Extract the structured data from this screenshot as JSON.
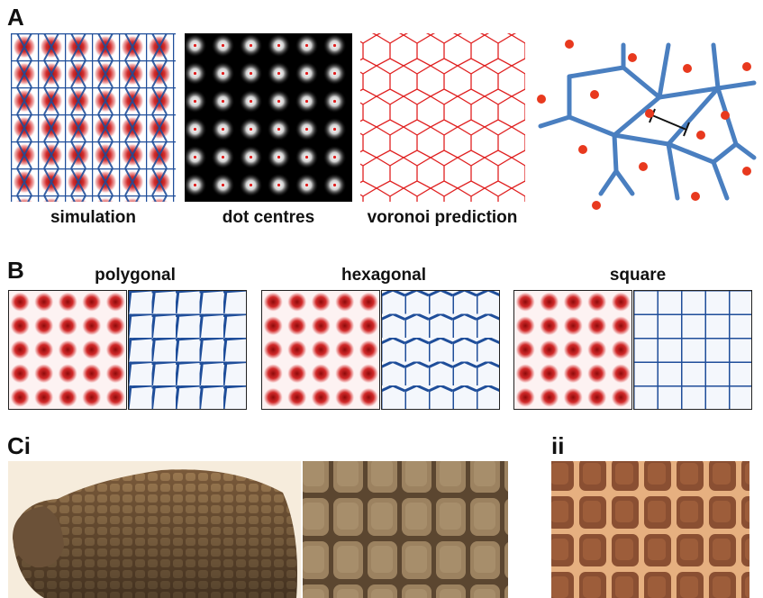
{
  "panels": {
    "A": {
      "letter": "A",
      "captions": {
        "simulation": "simulation",
        "dot_centres": "dot centres",
        "voronoi": "voronoi prediction"
      }
    },
    "B": {
      "letter": "B",
      "titles": {
        "polygonal": "polygonal",
        "hexagonal": "hexagonal",
        "square": "square"
      }
    },
    "C": {
      "letter_i": "Ci",
      "letter_ii": "ii"
    }
  },
  "colors": {
    "dot_red": "#c81b1b",
    "edge_blue": "#1f4e9a",
    "voronoi_red": "#e02020",
    "diagram_blue": "#4a7fc0",
    "diagram_dot": "#e8391e"
  }
}
